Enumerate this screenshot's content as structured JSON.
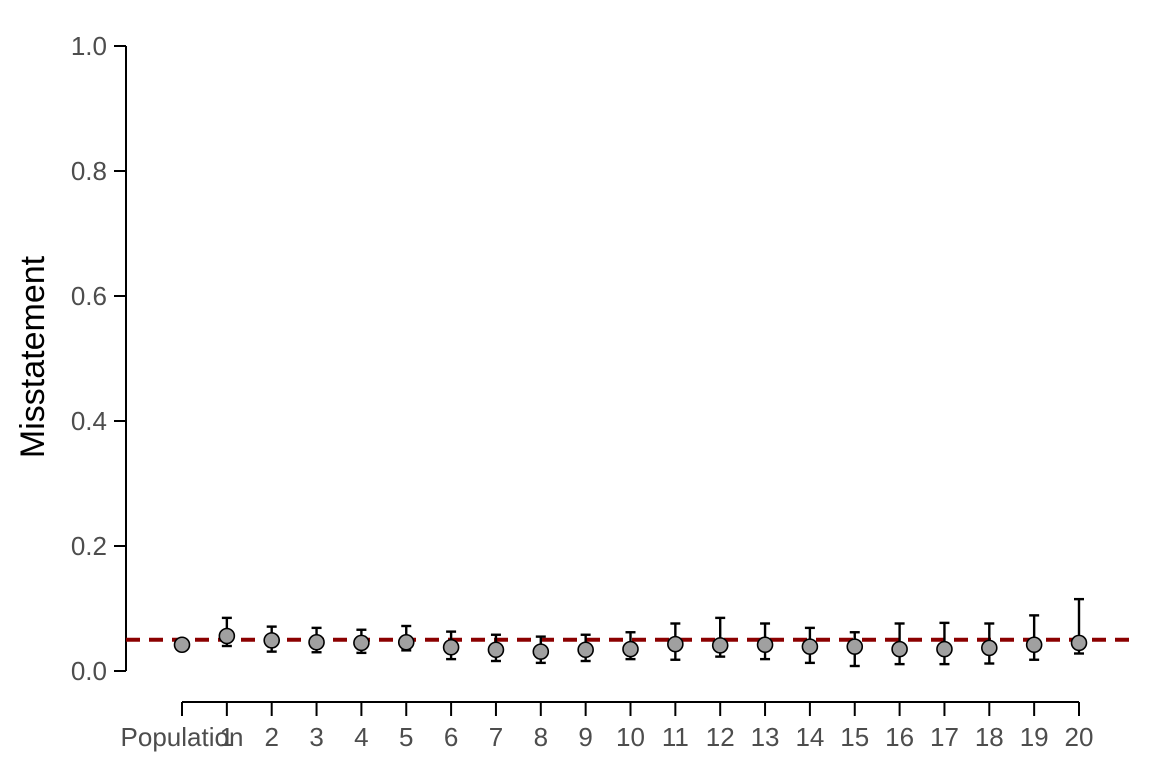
{
  "chart_data": {
    "type": "scatter",
    "ylabel": "Misstatement",
    "xlabel": "",
    "ylim": [
      0,
      1
    ],
    "y_ticks": [
      "0.0",
      "0.2",
      "0.4",
      "0.6",
      "0.8",
      "1.0"
    ],
    "y_tick_values": [
      0,
      0.2,
      0.4,
      0.6,
      0.8,
      1.0
    ],
    "categories": [
      "Population",
      "1",
      "2",
      "3",
      "4",
      "5",
      "6",
      "7",
      "8",
      "9",
      "10",
      "11",
      "12",
      "13",
      "14",
      "15",
      "16",
      "17",
      "18",
      "19",
      "20"
    ],
    "values": [
      0.042,
      0.056,
      0.049,
      0.046,
      0.045,
      0.046,
      0.038,
      0.034,
      0.031,
      0.034,
      0.035,
      0.043,
      0.041,
      0.042,
      0.039,
      0.039,
      0.035,
      0.035,
      0.037,
      0.042,
      0.045
    ],
    "lower": [
      null,
      0.04,
      0.031,
      0.03,
      0.029,
      0.033,
      0.019,
      0.016,
      0.013,
      0.016,
      0.019,
      0.018,
      0.023,
      0.019,
      0.013,
      0.008,
      0.011,
      0.011,
      0.012,
      0.018,
      0.028
    ],
    "upper": [
      null,
      0.085,
      0.071,
      0.069,
      0.066,
      0.072,
      0.063,
      0.058,
      0.055,
      0.058,
      0.062,
      0.076,
      0.085,
      0.076,
      0.069,
      0.062,
      0.076,
      0.077,
      0.076,
      0.089,
      0.115
    ],
    "reference_line": 0.05,
    "reference_color": "#8b0000",
    "point_fill": "#a0a0a0",
    "grid": false
  }
}
